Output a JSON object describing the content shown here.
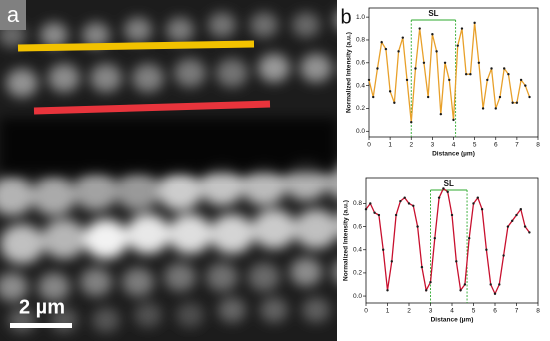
{
  "panel_labels": [
    "a",
    "b"
  ],
  "scale_bar": "2 µm",
  "chart_data": [
    {
      "type": "line",
      "xlabel": "Distance (µm)",
      "ylabel": "Normalized Intensity (a.u.)",
      "x": [
        0,
        0.2,
        0.4,
        0.6,
        0.8,
        1.0,
        1.2,
        1.4,
        1.6,
        1.8,
        2.0,
        2.2,
        2.4,
        2.6,
        2.8,
        3.0,
        3.2,
        3.4,
        3.6,
        3.8,
        4.0,
        4.2,
        4.4,
        4.6,
        4.8,
        5.0,
        5.2,
        5.4,
        5.6,
        5.8,
        6.0,
        6.2,
        6.4,
        6.6,
        6.8,
        7.0,
        7.2,
        7.4,
        7.6
      ],
      "series": [
        {
          "color": "#e8a02a",
          "marker_color": "#1a1a1a",
          "values": [
            0.45,
            0.3,
            0.55,
            0.78,
            0.72,
            0.35,
            0.25,
            0.7,
            0.82,
            0.45,
            0.08,
            0.55,
            0.9,
            0.6,
            0.3,
            0.85,
            0.7,
            0.15,
            0.6,
            0.45,
            0.1,
            0.75,
            0.9,
            0.5,
            0.5,
            0.95,
            0.6,
            0.2,
            0.45,
            0.55,
            0.2,
            0.3,
            0.55,
            0.5,
            0.25,
            0.25,
            0.45,
            0.4,
            0.3
          ]
        }
      ],
      "xlim": [
        0,
        8
      ],
      "xticks": [
        0,
        1,
        2,
        3,
        4,
        5,
        6,
        7,
        8
      ],
      "ylim": [
        -0.05,
        1.08
      ],
      "yticks": [
        {
          "value": 0,
          "label": "0.0"
        },
        {
          "value": 0.2,
          "label": "0.2"
        },
        {
          "value": 0.4,
          "label": "0.4"
        },
        {
          "value": 0.6,
          "label": "0.6"
        },
        {
          "value": 0.8,
          "label": "0.8"
        },
        {
          "value": 1.0,
          "label": "1.0"
        }
      ],
      "annotation": {
        "text": "SL",
        "x": [
          2.0,
          4.1
        ],
        "color": "#2eaa2e"
      }
    },
    {
      "type": "line",
      "xlabel": "Distance (µm)",
      "ylabel": "Normalized Intensity (a.u.)",
      "x": [
        0,
        0.2,
        0.4,
        0.6,
        0.8,
        1.0,
        1.2,
        1.4,
        1.6,
        1.8,
        2.0,
        2.2,
        2.4,
        2.6,
        2.8,
        3.0,
        3.2,
        3.4,
        3.6,
        3.8,
        4.0,
        4.2,
        4.4,
        4.6,
        4.8,
        5.0,
        5.2,
        5.4,
        5.6,
        5.8,
        6.0,
        6.2,
        6.4,
        6.6,
        6.8,
        7.0,
        7.2,
        7.4,
        7.6
      ],
      "series": [
        {
          "color": "#c8102e",
          "marker_color": "#1a1a1a",
          "values": [
            0.75,
            0.8,
            0.72,
            0.7,
            0.4,
            0.05,
            0.3,
            0.7,
            0.82,
            0.85,
            0.8,
            0.78,
            0.6,
            0.25,
            0.05,
            0.12,
            0.5,
            0.85,
            0.93,
            0.9,
            0.7,
            0.3,
            0.05,
            0.1,
            0.5,
            0.8,
            0.85,
            0.75,
            0.4,
            0.1,
            0.02,
            0.1,
            0.35,
            0.6,
            0.65,
            0.7,
            0.75,
            0.6,
            0.55
          ]
        }
      ],
      "xlim": [
        0,
        8
      ],
      "xticks": [
        0,
        1,
        2,
        3,
        4,
        5,
        6,
        7,
        8
      ],
      "ylim": [
        -0.06,
        1.02
      ],
      "yticks": [
        {
          "value": 0,
          "label": "0.0"
        },
        {
          "value": 0.2,
          "label": "0.2"
        },
        {
          "value": 0.4,
          "label": "0.4"
        },
        {
          "value": 0.6,
          "label": "0.6"
        },
        {
          "value": 0.8,
          "label": "0.8"
        }
      ],
      "annotation": {
        "text": "SL",
        "x": [
          3.0,
          4.7
        ],
        "color": "#2eaa2e"
      }
    }
  ]
}
